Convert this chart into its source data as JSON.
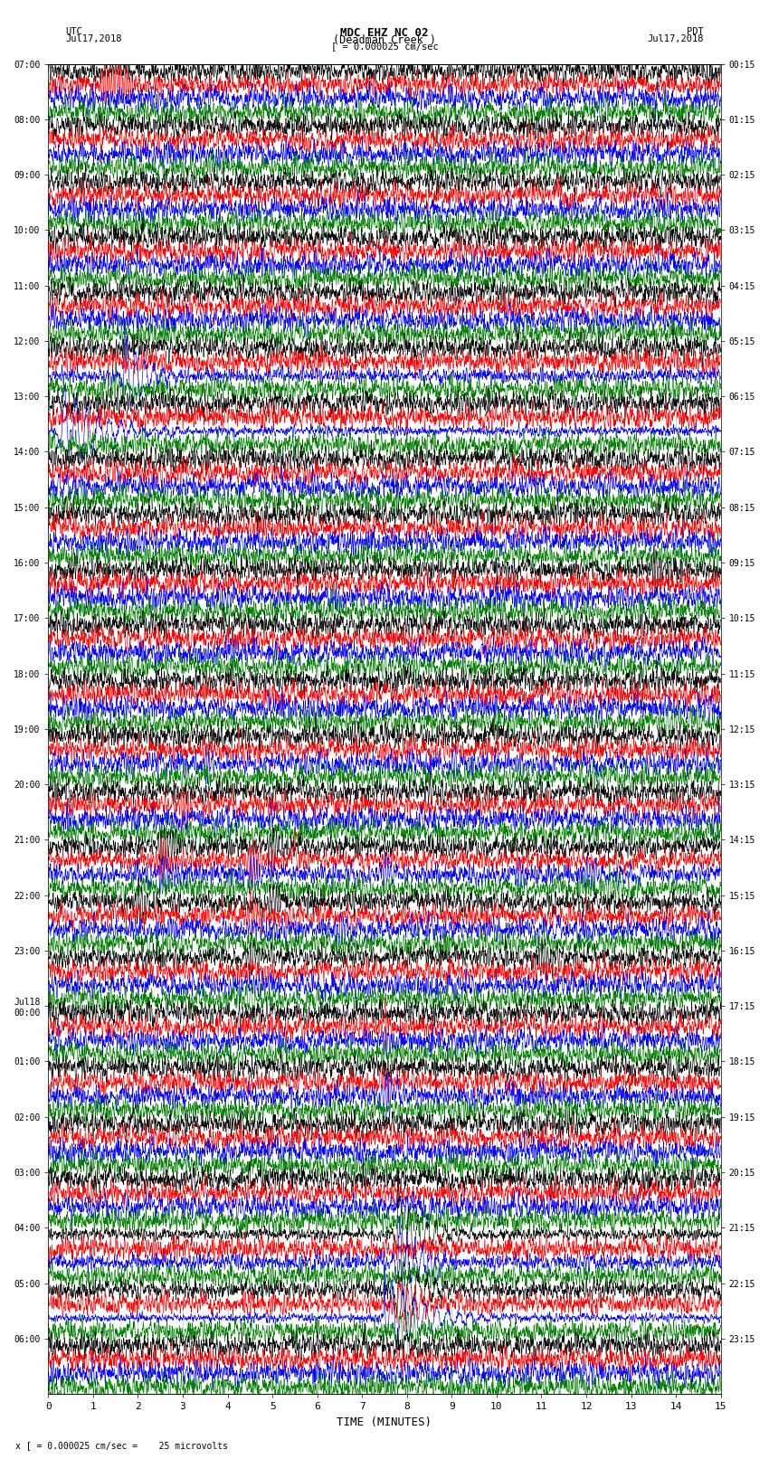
{
  "title_line1": "MDC EHZ NC 02",
  "title_line2": "(Deadman Creek )",
  "title_line3": "[ = 0.000025 cm/sec",
  "left_label_top": "UTC",
  "left_label_date": "Jul17,2018",
  "right_label_top": "PDT",
  "right_label_date": "Jul17,2018",
  "xlabel": "TIME (MINUTES)",
  "footer": "x [ = 0.000025 cm/sec =    25 microvolts",
  "bg_color": "#ffffff",
  "trace_colors": [
    "black",
    "red",
    "blue",
    "green"
  ],
  "utc_labels": [
    "07:00",
    "08:00",
    "09:00",
    "10:00",
    "11:00",
    "12:00",
    "13:00",
    "14:00",
    "15:00",
    "16:00",
    "17:00",
    "18:00",
    "19:00",
    "20:00",
    "21:00",
    "22:00",
    "23:00",
    "Jul18\n00:00",
    "01:00",
    "02:00",
    "03:00",
    "04:00",
    "05:00",
    "06:00"
  ],
  "pdt_labels": [
    "00:15",
    "01:15",
    "02:15",
    "03:15",
    "04:15",
    "05:15",
    "06:15",
    "07:15",
    "08:15",
    "09:15",
    "10:15",
    "11:15",
    "12:15",
    "13:15",
    "14:15",
    "15:15",
    "16:15",
    "17:15",
    "18:15",
    "19:15",
    "20:15",
    "21:15",
    "22:15",
    "23:15"
  ],
  "n_rows": 24,
  "n_traces_per_row": 4,
  "minutes": 15,
  "xmin": 0,
  "xmax": 15,
  "xticks": [
    0,
    1,
    2,
    3,
    4,
    5,
    6,
    7,
    8,
    9,
    10,
    11,
    12,
    13,
    14,
    15
  ]
}
